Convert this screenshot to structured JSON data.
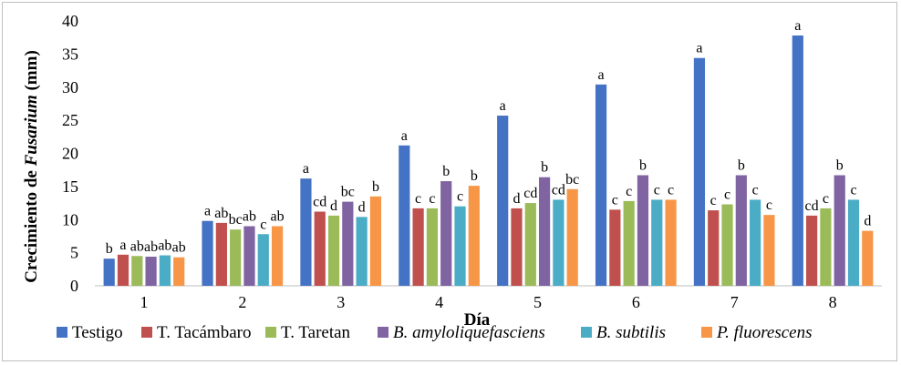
{
  "chart_data": {
    "type": "bar",
    "title": "",
    "xlabel": "Día",
    "ylabel": {
      "prefix": "Crecimiento de ",
      "italic": "Fusarium",
      "suffix": " (mm)"
    },
    "ylim": [
      0,
      40
    ],
    "yticks": [
      "0",
      "5",
      "10",
      "15",
      "20",
      "25",
      "30",
      "35",
      "40"
    ],
    "grid": false,
    "legend_position": "bottom",
    "categories": [
      "1",
      "2",
      "3",
      "4",
      "5",
      "6",
      "7",
      "8"
    ],
    "series": [
      {
        "name": "Testigo",
        "italic": false,
        "color": "#4472c4",
        "values": [
          4.1,
          9.8,
          16.2,
          21.2,
          25.7,
          30.4,
          34.4,
          37.8
        ],
        "labels": [
          "b",
          "a",
          "a",
          "a",
          "a",
          "a",
          "a",
          "a"
        ]
      },
      {
        "name": "T. Tacámbaro",
        "italic": false,
        "color": "#c0504d",
        "values": [
          4.7,
          9.5,
          11.2,
          11.7,
          11.7,
          11.5,
          11.4,
          10.6
        ],
        "labels": [
          "a",
          "ab",
          "cd",
          "c",
          "d",
          "c",
          "c",
          "cd"
        ]
      },
      {
        "name": "T. Taretan",
        "italic": false,
        "color": "#9bbb59",
        "values": [
          4.5,
          8.5,
          10.6,
          11.7,
          12.5,
          12.8,
          12.3,
          11.7
        ],
        "labels": [
          "ab",
          "bc",
          "d",
          "c",
          "cd",
          "c",
          "c",
          "c"
        ]
      },
      {
        "name": "B. amyloliquefasciens",
        "italic": true,
        "color": "#8064a2",
        "values": [
          4.4,
          9.0,
          12.7,
          15.8,
          16.4,
          16.7,
          16.7,
          16.7
        ],
        "labels": [
          "ab",
          "ab",
          "bc",
          "b",
          "b",
          "b",
          "b",
          "b"
        ]
      },
      {
        "name": "B. subtilis",
        "italic": true,
        "color": "#4bacc6",
        "values": [
          4.6,
          7.8,
          10.4,
          12.0,
          13.0,
          13.0,
          13.0,
          13.0
        ],
        "labels": [
          "ab",
          "c",
          "d",
          "c",
          "cd",
          "c",
          "c",
          "c"
        ]
      },
      {
        "name": "P. fluorescens",
        "italic": true,
        "color": "#f79646",
        "values": [
          4.3,
          9.0,
          13.5,
          15.1,
          14.6,
          13.0,
          10.7,
          8.3
        ],
        "labels": [
          "ab",
          "ab",
          "b",
          "b",
          "bc",
          "c",
          "c",
          "d"
        ]
      }
    ]
  }
}
